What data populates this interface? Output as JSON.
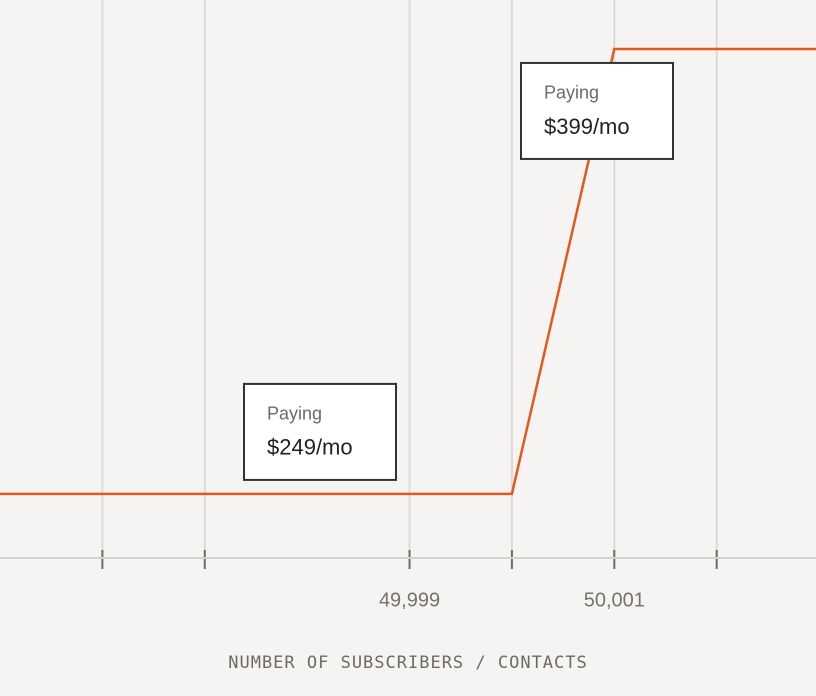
{
  "chart_data": {
    "type": "line",
    "x_label": "NUMBER OF SUBSCRIBERS / CONTACTS",
    "xlim": [
      49995,
      50002.97
    ],
    "ylim": [
      227.4,
      415.5
    ],
    "xticks": [
      {
        "value": 49996,
        "label": null
      },
      {
        "value": 49997,
        "label": null
      },
      {
        "value": 49999,
        "label": "49,999"
      },
      {
        "value": 50000,
        "label": null
      },
      {
        "value": 50001,
        "label": "50,001"
      },
      {
        "value": 50002,
        "label": null
      }
    ],
    "grid": true,
    "series": [
      {
        "color": "#e3581c",
        "x": [
          49995,
          50000,
          50001,
          50002.97
        ],
        "values": [
          249,
          249,
          399,
          399
        ]
      }
    ],
    "annotations": [
      {
        "label": "Paying",
        "text": "$249/mo",
        "value": 249
      },
      {
        "label": "Paying",
        "text": "$399/mo",
        "value": 399
      }
    ]
  }
}
